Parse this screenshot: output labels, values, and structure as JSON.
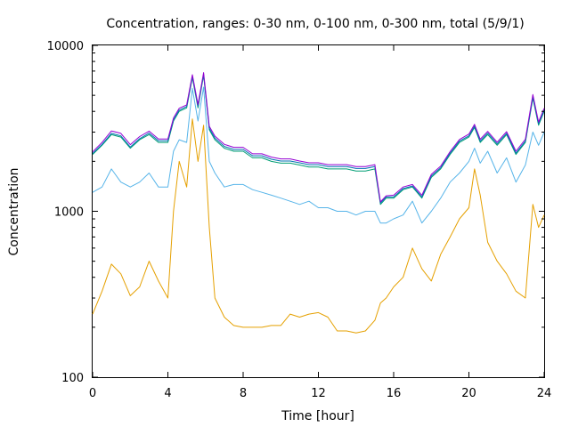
{
  "chart_data": {
    "type": "line",
    "title": "Concentration, ranges: 0-30 nm, 0-100 nm, 0-300 nm, total (5/9/1)",
    "xlabel": "Time [hour]",
    "ylabel": "Concentration",
    "xlim": [
      0,
      24
    ],
    "ylim": [
      100,
      10000
    ],
    "yscale": "log",
    "grid": false,
    "legend": "none",
    "x_ticks": [
      0,
      4,
      8,
      12,
      16,
      20,
      24
    ],
    "x_tick_labels": [
      "0",
      "4",
      "8",
      "12",
      "16",
      "20",
      "24"
    ],
    "y_ticks": [
      100,
      1000,
      10000
    ],
    "y_tick_labels": [
      "100",
      "1000",
      "10000"
    ],
    "x": [
      0,
      0.5,
      1,
      1.5,
      2,
      2.5,
      3,
      3.5,
      4,
      4.3,
      4.6,
      5,
      5.3,
      5.6,
      5.9,
      6.2,
      6.5,
      7,
      7.5,
      8,
      8.5,
      9,
      9.5,
      10,
      10.5,
      11,
      11.5,
      12,
      12.5,
      13,
      13.5,
      14,
      14.5,
      15,
      15.3,
      15.6,
      16,
      16.5,
      17,
      17.5,
      18,
      18.5,
      19,
      19.5,
      20,
      20.3,
      20.6,
      21,
      21.5,
      22,
      22.5,
      23,
      23.4,
      23.7,
      24
    ],
    "series": [
      {
        "color": "#e5a000",
        "values": [
          240,
          330,
          480,
          420,
          310,
          350,
          500,
          380,
          300,
          1000,
          2000,
          1400,
          3600,
          2000,
          3300,
          800,
          300,
          230,
          205,
          200,
          200,
          200,
          205,
          205,
          240,
          230,
          240,
          245,
          230,
          190,
          190,
          185,
          190,
          220,
          280,
          300,
          350,
          400,
          600,
          450,
          380,
          550,
          700,
          900,
          1050,
          1800,
          1250,
          650,
          500,
          420,
          330,
          300,
          1100,
          800,
          950
        ]
      },
      {
        "color": "#56b4e9",
        "values": [
          1300,
          1400,
          1800,
          1500,
          1400,
          1500,
          1700,
          1400,
          1400,
          2300,
          2700,
          2600,
          5500,
          3500,
          5600,
          2000,
          1700,
          1400,
          1450,
          1450,
          1350,
          1300,
          1250,
          1200,
          1150,
          1100,
          1150,
          1050,
          1050,
          1000,
          1000,
          950,
          1000,
          1000,
          850,
          850,
          900,
          950,
          1150,
          850,
          1000,
          1200,
          1500,
          1700,
          2000,
          2400,
          1950,
          2300,
          1700,
          2100,
          1500,
          1900,
          3000,
          2500,
          3000
        ]
      },
      {
        "color": "#009e73",
        "values": [
          2200,
          2500,
          2900,
          2800,
          2400,
          2700,
          2900,
          2600,
          2600,
          3500,
          4000,
          4200,
          6400,
          4200,
          6600,
          3100,
          2700,
          2400,
          2300,
          2300,
          2100,
          2100,
          2000,
          1950,
          1950,
          1900,
          1850,
          1850,
          1800,
          1800,
          1800,
          1750,
          1750,
          1800,
          1100,
          1200,
          1200,
          1350,
          1400,
          1200,
          1600,
          1800,
          2200,
          2600,
          2800,
          3200,
          2600,
          2900,
          2500,
          2900,
          2200,
          2600,
          4800,
          3300,
          4000
        ]
      },
      {
        "color": "#0072b2",
        "values": [
          2230,
          2530,
          2950,
          2850,
          2440,
          2740,
          2960,
          2660,
          2660,
          3560,
          4070,
          4280,
          6500,
          4290,
          6700,
          3160,
          2760,
          2460,
          2360,
          2360,
          2160,
          2160,
          2060,
          2010,
          2010,
          1960,
          1910,
          1910,
          1860,
          1860,
          1860,
          1810,
          1810,
          1860,
          1120,
          1220,
          1220,
          1370,
          1420,
          1220,
          1630,
          1830,
          2240,
          2650,
          2850,
          3260,
          2650,
          2960,
          2550,
          2950,
          2240,
          2650,
          4900,
          3370,
          4080
        ]
      },
      {
        "color": "#9400d3",
        "values": [
          2280,
          2600,
          3050,
          2950,
          2520,
          2820,
          3040,
          2730,
          2730,
          3650,
          4180,
          4380,
          6650,
          4400,
          6850,
          3250,
          2840,
          2530,
          2430,
          2430,
          2220,
          2220,
          2120,
          2070,
          2070,
          2010,
          1960,
          1960,
          1910,
          1910,
          1910,
          1860,
          1860,
          1910,
          1140,
          1240,
          1250,
          1400,
          1450,
          1250,
          1670,
          1870,
          2290,
          2710,
          2920,
          3340,
          2720,
          3030,
          2610,
          3020,
          2300,
          2720,
          5050,
          3450,
          4180
        ]
      }
    ]
  }
}
